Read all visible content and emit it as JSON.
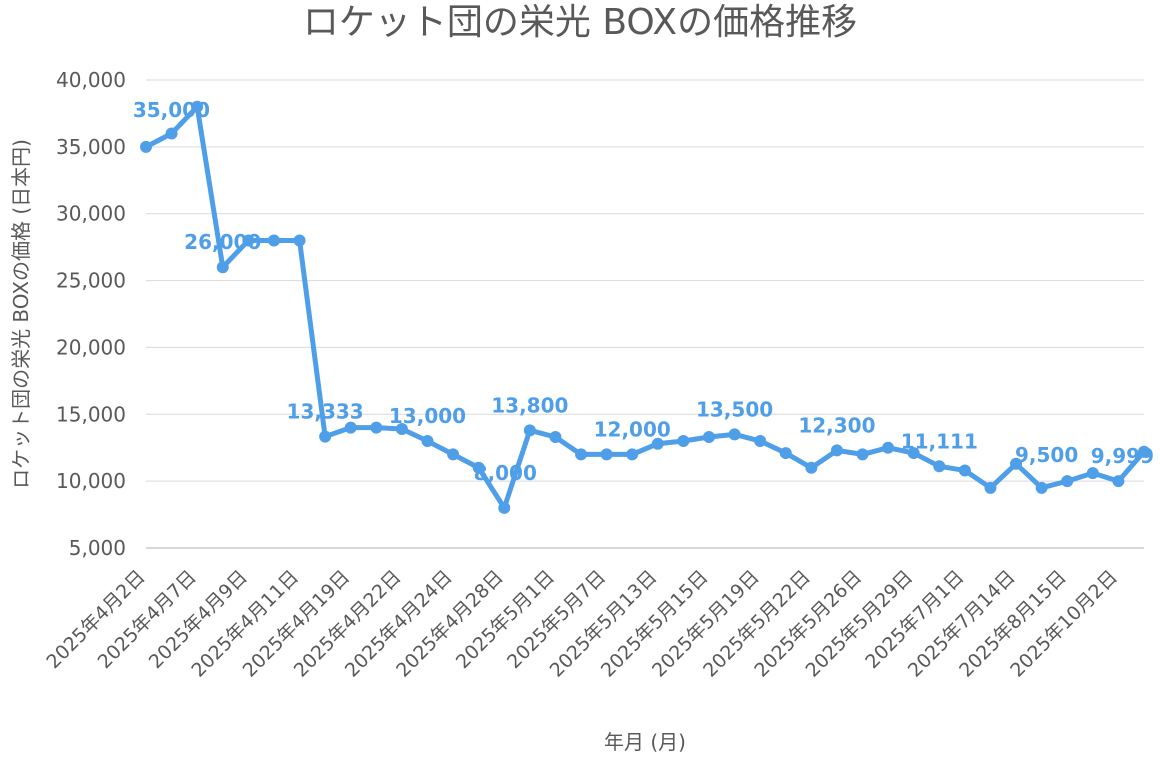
{
  "chart_data": {
    "type": "line",
    "title": "ロケット団の栄光 BOXの価格推移",
    "xlabel": "年月 (月)",
    "ylabel": "ロケット団の栄光 BOXの価格 (日本円)",
    "ylim": [
      5000,
      40000
    ],
    "yticks": [
      "5,000",
      "10,000",
      "15,000",
      "20,000",
      "25,000",
      "30,000",
      "35,000",
      "40,000"
    ],
    "ytick_values": [
      5000,
      10000,
      15000,
      20000,
      25000,
      30000,
      35000,
      40000
    ],
    "grid": true,
    "legend": "none",
    "line_color": "#4f9ee8",
    "x": [
      "2025年4月2日",
      "",
      "2025年4月7日",
      "",
      "2025年4月9日",
      "",
      "2025年4月11日",
      "",
      "2025年4月19日",
      "",
      "2025年4月22日",
      "",
      "2025年4月24日",
      "",
      "2025年4月28日",
      "",
      "2025年5月1日",
      "",
      "2025年5月7日",
      "",
      "2025年5月13日",
      "",
      "2025年5月15日",
      "",
      "2025年5月19日",
      "",
      "2025年5月22日",
      "",
      "2025年5月26日",
      "",
      "2025年5月29日",
      "",
      "2025年7月1日",
      "",
      "2025年7月14日",
      "",
      "2025年8月15日",
      "",
      "2025年10月2日",
      ""
    ],
    "series": [
      {
        "values": [
          35000,
          36000,
          38000,
          26000,
          28000,
          28000,
          28000,
          13333,
          14000,
          14000,
          13900,
          13000,
          12000,
          11000,
          8000,
          13800,
          13300,
          12000,
          12000,
          12000,
          12800,
          13000,
          13300,
          13500,
          13000,
          12100,
          11000,
          12300,
          12000,
          12500,
          12100,
          11111,
          10800,
          9500,
          11300,
          9500,
          10000,
          10600,
          9999,
          12200
        ]
      }
    ],
    "data_labels": [
      {
        "index": 0,
        "text": "35,000"
      },
      {
        "index": 3,
        "text": "26,000"
      },
      {
        "index": 7,
        "text": "13,333"
      },
      {
        "index": 11,
        "text": "13,000"
      },
      {
        "index": 14,
        "text": "8,000"
      },
      {
        "index": 15,
        "text": "13,800"
      },
      {
        "index": 19,
        "text": "12,000"
      },
      {
        "index": 23,
        "text": "13,500"
      },
      {
        "index": 27,
        "text": "12,300"
      },
      {
        "index": 31,
        "text": "11,111"
      },
      {
        "index": 35,
        "text": "9,500"
      },
      {
        "index": 38,
        "text": "9,999"
      }
    ]
  }
}
